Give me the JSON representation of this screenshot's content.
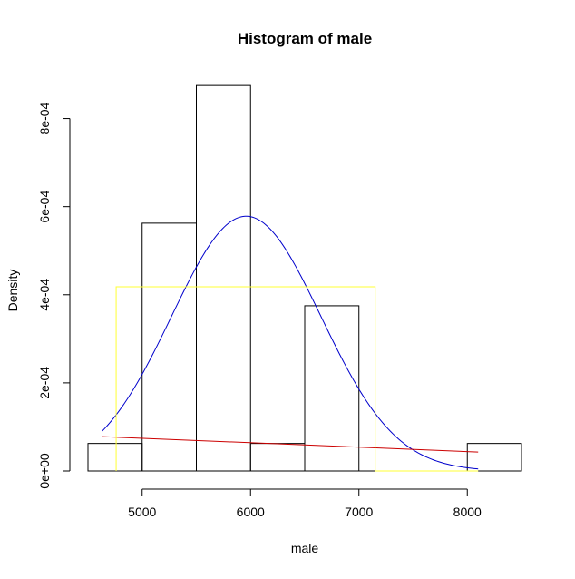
{
  "chart_data": {
    "type": "bar",
    "title": "Histogram of male",
    "xlabel": "male",
    "ylabel": "Density",
    "xlim": [
      4500,
      8500
    ],
    "ylim": [
      0,
      0.0009
    ],
    "x_ticks": [
      5000,
      6000,
      7000,
      8000
    ],
    "x_tick_labels": [
      "5000",
      "6000",
      "7000",
      "8000"
    ],
    "y_ticks": [
      0,
      0.0002,
      0.0004,
      0.0006,
      0.0008
    ],
    "y_tick_labels": [
      "0e+00",
      "2e-04",
      "4e-04",
      "6e-04",
      "8e-04"
    ],
    "bins": [
      {
        "x0": 4500,
        "x1": 5000,
        "density": 6.25e-05
      },
      {
        "x0": 5000,
        "x1": 5500,
        "density": 0.0005625
      },
      {
        "x0": 5500,
        "x1": 6000,
        "density": 0.000875
      },
      {
        "x0": 6000,
        "x1": 6500,
        "density": 6.25e-05
      },
      {
        "x0": 6500,
        "x1": 7000,
        "density": 0.000375
      },
      {
        "x0": 7000,
        "x1": 7500,
        "density": 0.0
      },
      {
        "x0": 7500,
        "x1": 8000,
        "density": 0.0
      },
      {
        "x0": 8000,
        "x1": 8500,
        "density": 6.25e-05
      }
    ],
    "overlays": [
      {
        "kind": "normal-density-curve",
        "color": "#0000cc",
        "mean": 5960,
        "sd": 690,
        "x_from": 4630,
        "x_to": 8100
      },
      {
        "kind": "line",
        "color": "#cc0000",
        "x": [
          4630,
          8100
        ],
        "y": [
          7.8e-05,
          4.3e-05
        ]
      },
      {
        "kind": "uniform-density-rectangle",
        "color": "#ffff33",
        "x_from": 4760,
        "x_to": 7150,
        "density": 0.000418,
        "x_extent_end": 8100
      }
    ]
  }
}
